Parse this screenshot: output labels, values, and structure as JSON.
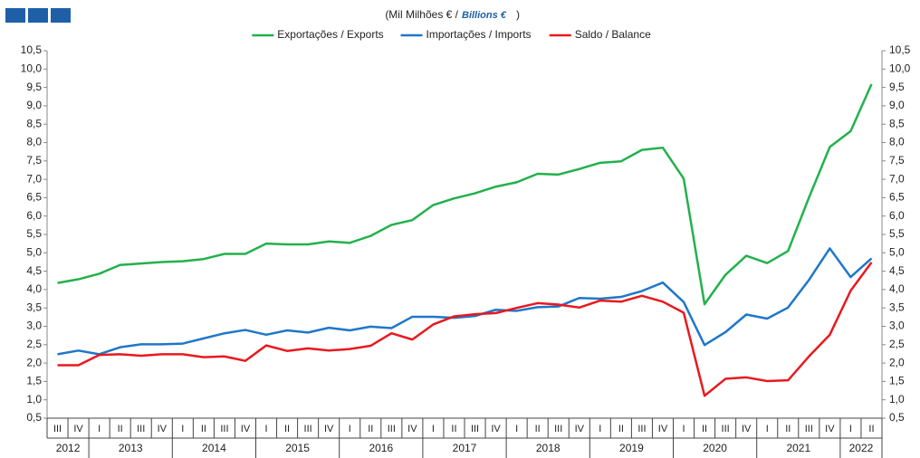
{
  "chart_data": {
    "type": "line",
    "title": "(Mil Milhões € /",
    "title_en": "Billions €",
    "title_close": ")",
    "categories": [
      "III",
      "IV",
      "I",
      "II",
      "III",
      "IV",
      "I",
      "II",
      "III",
      "IV",
      "I",
      "II",
      "III",
      "IV",
      "I",
      "II",
      "III",
      "IV",
      "I",
      "II",
      "III",
      "IV",
      "I",
      "II",
      "III",
      "IV",
      "I",
      "II",
      "III",
      "IV",
      "I",
      "II",
      "III",
      "IV",
      "I",
      "II",
      "III",
      "IV",
      "I",
      "II"
    ],
    "years": [
      "2012",
      "2013",
      "2014",
      "2015",
      "2016",
      "2017",
      "2018",
      "2019",
      "2020",
      "2021",
      "2022"
    ],
    "series": [
      {
        "name": "Exportações / Exports",
        "color": "#22b14c",
        "values": [
          4.18,
          4.28,
          4.43,
          4.67,
          4.71,
          4.75,
          4.77,
          4.83,
          4.97,
          4.97,
          5.25,
          5.23,
          5.23,
          5.31,
          5.27,
          5.46,
          5.76,
          5.89,
          6.3,
          6.48,
          6.62,
          6.8,
          6.92,
          7.15,
          7.13,
          7.28,
          7.45,
          7.49,
          7.8,
          7.86,
          7.02,
          3.6,
          4.4,
          4.92,
          4.72,
          5.05,
          6.5,
          7.88,
          8.31,
          9.59
        ]
      },
      {
        "name": "Importações / Imports",
        "color": "#1f77c8",
        "values": [
          2.24,
          2.34,
          2.24,
          2.43,
          2.51,
          2.51,
          2.53,
          2.67,
          2.81,
          2.9,
          2.77,
          2.89,
          2.83,
          2.96,
          2.89,
          2.99,
          2.95,
          3.26,
          3.26,
          3.23,
          3.28,
          3.45,
          3.42,
          3.52,
          3.54,
          3.77,
          3.75,
          3.8,
          3.96,
          4.19,
          3.66,
          2.49,
          2.84,
          3.32,
          3.21,
          3.51,
          4.26,
          5.12,
          4.34,
          4.85
        ]
      },
      {
        "name": "Saldo / Balance",
        "color": "#e8191e",
        "values": [
          1.94,
          1.94,
          2.22,
          2.24,
          2.2,
          2.24,
          2.24,
          2.16,
          2.18,
          2.06,
          2.48,
          2.33,
          2.4,
          2.34,
          2.38,
          2.47,
          2.81,
          2.64,
          3.05,
          3.27,
          3.33,
          3.36,
          3.5,
          3.63,
          3.59,
          3.51,
          3.7,
          3.67,
          3.83,
          3.67,
          3.37,
          1.11,
          1.57,
          1.61,
          1.51,
          1.53,
          2.18,
          2.77,
          3.97,
          4.74
        ]
      }
    ],
    "ylim": [
      0.5,
      10.5
    ],
    "yticks": [
      {
        "value": 0.5,
        "label": "0,5"
      },
      {
        "value": 1,
        "label": "1,0"
      },
      {
        "value": 1.5,
        "label": "1,5"
      },
      {
        "value": 2,
        "label": "2,0"
      },
      {
        "value": 2.5,
        "label": "2,5"
      },
      {
        "value": 3,
        "label": "3,0"
      },
      {
        "value": 3.5,
        "label": "3,5"
      },
      {
        "value": 4,
        "label": "4,0"
      },
      {
        "value": 4.5,
        "label": "4,5"
      },
      {
        "value": 5,
        "label": "5,0"
      },
      {
        "value": 5.5,
        "label": "5,5"
      },
      {
        "value": 6,
        "label": "6,0"
      },
      {
        "value": 6.5,
        "label": "6,5"
      },
      {
        "value": 7,
        "label": "7,0"
      },
      {
        "value": 7.5,
        "label": "7,5"
      },
      {
        "value": 8,
        "label": "8,0"
      },
      {
        "value": 8.5,
        "label": "8,5"
      },
      {
        "value": 9,
        "label": "9,0"
      },
      {
        "value": 9.5,
        "label": "9,5"
      },
      {
        "value": 10,
        "label": "10,0"
      },
      {
        "value": 10.5,
        "label": "10,5"
      }
    ],
    "grid": false
  }
}
